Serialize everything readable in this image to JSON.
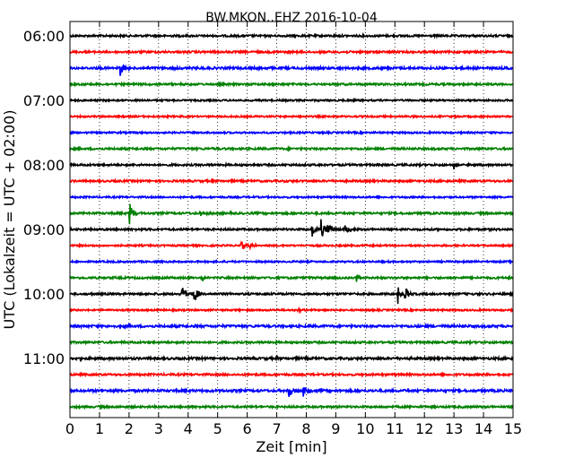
{
  "chart_data": {
    "type": "line",
    "title": "BW.MKON..EHZ 2016-10-04",
    "xlabel": "Zeit  [min]",
    "ylabel": "UTC (Lokalzeit = UTC + 02:00)",
    "xlim": [
      0,
      15
    ],
    "x_ticks": [
      "0",
      "1",
      "2",
      "3",
      "4",
      "5",
      "6",
      "7",
      "8",
      "9",
      "10",
      "11",
      "12",
      "13",
      "14",
      "15"
    ],
    "y_tick_labels": [
      "06:00",
      "07:00",
      "08:00",
      "09:00",
      "10:00",
      "11:00"
    ],
    "y_tick_rows": [
      0,
      4,
      8,
      12,
      16,
      20
    ],
    "grid_x": "dotted",
    "row_interval_min": 15,
    "row_colors": [
      "#000000",
      "#ff0000",
      "#0000ff",
      "#008000"
    ],
    "rows": [
      {
        "start": "06:00",
        "events": [],
        "noise": 0.6
      },
      {
        "start": "06:15",
        "events": [],
        "noise": 0.6
      },
      {
        "start": "06:30",
        "events": [
          {
            "t": 1.7,
            "amp": 1.6
          }
        ],
        "noise": 0.7
      },
      {
        "start": "06:45",
        "events": [],
        "noise": 0.6
      },
      {
        "start": "07:00",
        "events": [],
        "noise": 0.5
      },
      {
        "start": "07:15",
        "events": [],
        "noise": 0.5
      },
      {
        "start": "07:30",
        "events": [],
        "noise": 0.5
      },
      {
        "start": "07:45",
        "events": [],
        "noise": 0.6
      },
      {
        "start": "08:00",
        "events": [
          {
            "t": 13.0,
            "amp": 1.0
          }
        ],
        "noise": 0.6
      },
      {
        "start": "08:15",
        "events": [],
        "noise": 0.6
      },
      {
        "start": "08:30",
        "events": [],
        "noise": 0.5
      },
      {
        "start": "08:45",
        "events": [
          {
            "t": 2.0,
            "amp": 3.0
          },
          {
            "t": 4.4,
            "amp": 1.0
          }
        ],
        "noise": 0.6
      },
      {
        "start": "09:00",
        "events": [
          {
            "t": 8.2,
            "amp": 2.0
          },
          {
            "t": 8.5,
            "amp": 2.4
          },
          {
            "t": 8.7,
            "amp": 2.0
          },
          {
            "t": 9.3,
            "amp": 1.4
          }
        ],
        "noise": 0.6
      },
      {
        "start": "09:15",
        "events": [
          {
            "t": 5.8,
            "amp": 1.0
          },
          {
            "t": 6.1,
            "amp": 0.8
          }
        ],
        "noise": 0.5
      },
      {
        "start": "09:30",
        "events": [],
        "noise": 0.5
      },
      {
        "start": "09:45",
        "events": [
          {
            "t": 4.5,
            "amp": 0.8
          },
          {
            "t": 9.7,
            "amp": 1.2
          }
        ],
        "noise": 0.6
      },
      {
        "start": "10:00",
        "events": [
          {
            "t": 3.8,
            "amp": 2.2
          },
          {
            "t": 4.2,
            "amp": 2.4
          },
          {
            "t": 11.1,
            "amp": 2.2
          },
          {
            "t": 11.3,
            "amp": 2.4
          }
        ],
        "noise": 0.6
      },
      {
        "start": "10:15",
        "events": [
          {
            "t": 7.7,
            "amp": 0.7
          }
        ],
        "noise": 0.5
      },
      {
        "start": "10:30",
        "events": [],
        "noise": 0.7
      },
      {
        "start": "10:45",
        "events": [],
        "noise": 0.6
      },
      {
        "start": "11:00",
        "events": [],
        "noise": 0.7
      },
      {
        "start": "11:15",
        "events": [],
        "noise": 0.6
      },
      {
        "start": "11:30",
        "events": [
          {
            "t": 7.4,
            "amp": 1.6
          },
          {
            "t": 7.9,
            "amp": 1.4
          }
        ],
        "noise": 0.7
      },
      {
        "start": "11:45",
        "events": [],
        "noise": 0.6
      }
    ]
  }
}
